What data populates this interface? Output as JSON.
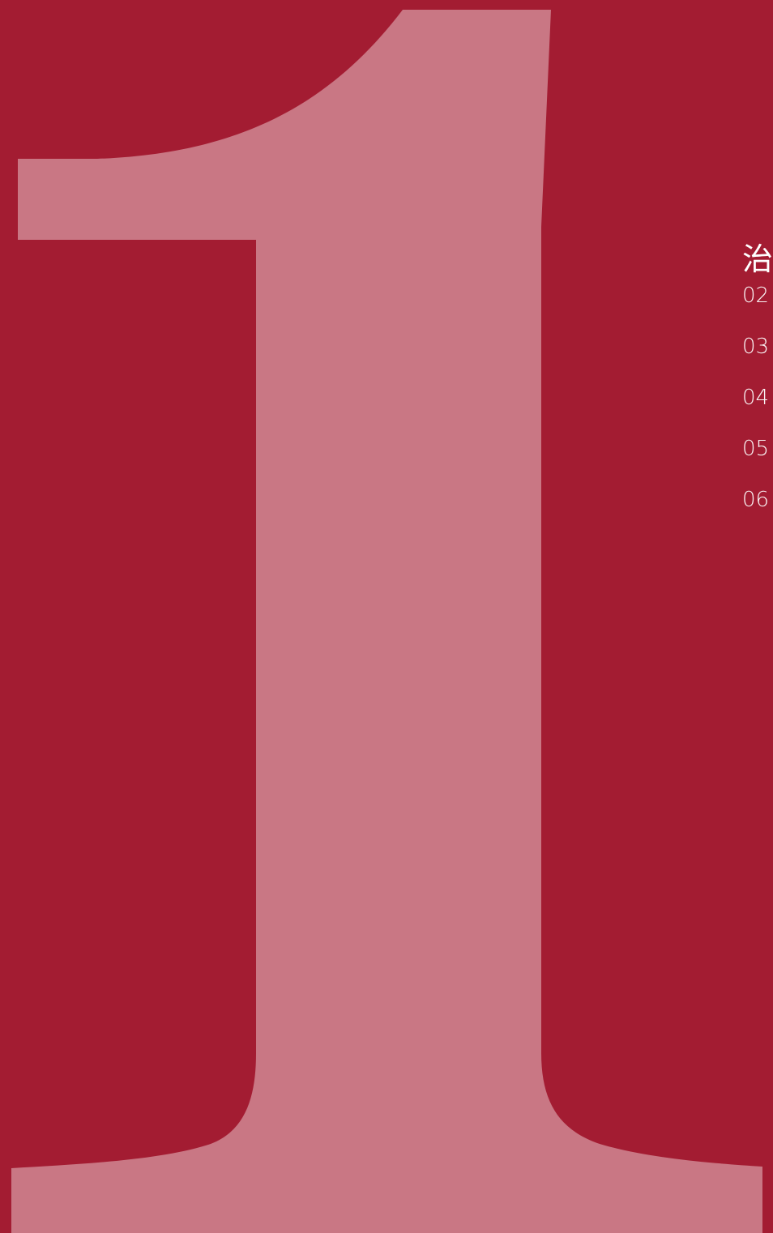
{
  "page": {
    "background_color": "#a31c32",
    "numeral_color": "#c97784"
  },
  "numeral": {
    "text": "1"
  },
  "toc": {
    "heading": "治",
    "items": [
      {
        "label": "02"
      },
      {
        "label": "03"
      },
      {
        "label": "04"
      },
      {
        "label": "05"
      },
      {
        "label": "06"
      }
    ]
  }
}
